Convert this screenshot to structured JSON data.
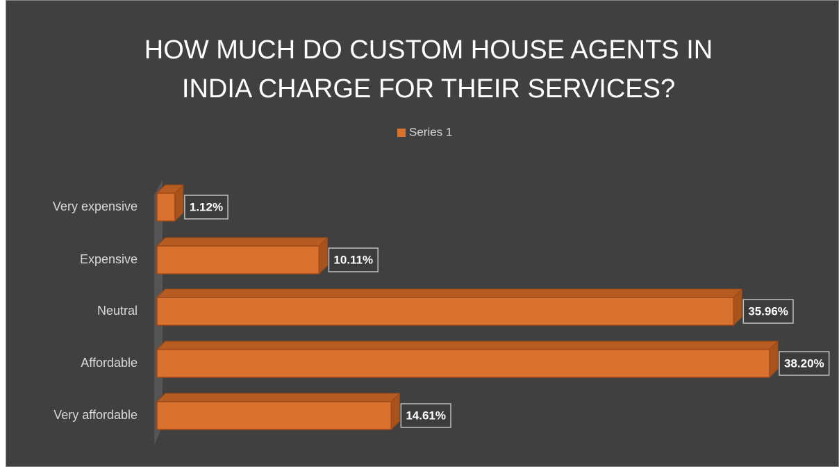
{
  "chart_data": {
    "type": "hbar",
    "title": "HOW MUCH DO CUSTOM HOUSE AGENTS IN INDIA CHARGE FOR THEIR SERVICES?",
    "categories": [
      "Very expensive",
      "Expensive",
      "Neutral",
      "Affordable",
      "Very affordable"
    ],
    "series": [
      {
        "name": "Series 1",
        "color": "#d9722f",
        "values": [
          1.12,
          10.11,
          35.96,
          38.2,
          14.61
        ],
        "value_labels": [
          "1.12%",
          "10.11%",
          "35.96%",
          "38.20%",
          "14.61%"
        ]
      }
    ],
    "legend": "top"
  }
}
